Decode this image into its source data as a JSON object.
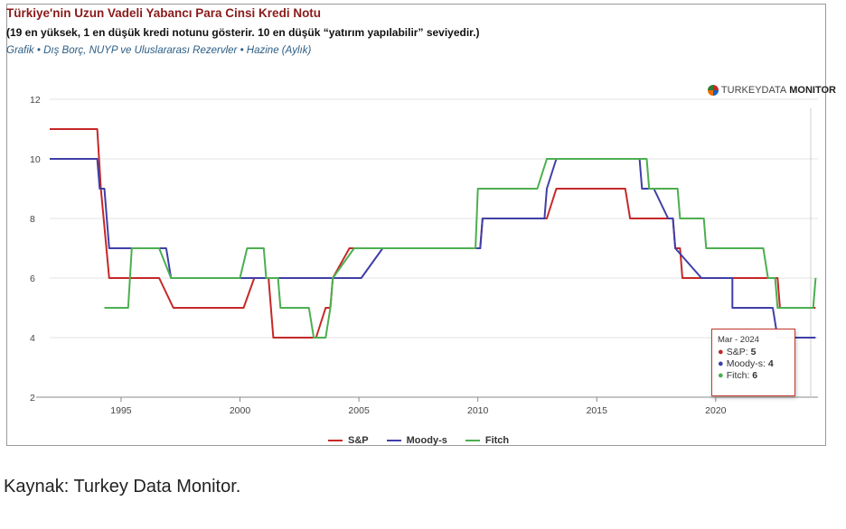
{
  "header": {
    "title": "Türkiye'nin Uzun Vadeli Yabancı Para Cinsi Kredi Notu",
    "subtitle": "(19 en yüksek, 1 en düşük kredi notunu gösterir. 10 en düşük “yatırım yapılabilir” seviyedir.)",
    "source_line": "Grafik • Dış Borç, NUYP ve Uluslararası Rezervler • Hazine (Aylık)"
  },
  "logo": {
    "part1": "TURKEYDATA",
    "part2": "MONITOR"
  },
  "caption": "Kaynak: Turkey Data Monitor.",
  "tooltip": {
    "date": "Mar - 2024",
    "rows": [
      {
        "label": "S&P",
        "value": "5",
        "color": "#c62828"
      },
      {
        "label": "Moody-s",
        "value": "4",
        "color": "#3f3fa8"
      },
      {
        "label": "Fitch",
        "value": "6",
        "color": "#4caf50"
      }
    ]
  },
  "chart_data": {
    "type": "line",
    "xlim": [
      1992.0,
      2024.3
    ],
    "ylim": [
      2,
      12
    ],
    "yticks": [
      2,
      4,
      6,
      8,
      10,
      12
    ],
    "xticks": [
      1995,
      2000,
      2005,
      2010,
      2015,
      2020
    ],
    "grid": "horizontal",
    "legend_position": "bottom",
    "series": [
      {
        "name": "S&P",
        "color": "#c62828",
        "points": [
          [
            1992.0,
            11
          ],
          [
            1994.0,
            11
          ],
          [
            1994.15,
            9
          ],
          [
            1994.5,
            6
          ],
          [
            1996.6,
            6
          ],
          [
            1997.2,
            5
          ],
          [
            2000.0,
            5
          ],
          [
            2000.15,
            5
          ],
          [
            2000.6,
            6
          ],
          [
            2001.2,
            6
          ],
          [
            2001.4,
            4
          ],
          [
            2003.2,
            4
          ],
          [
            2003.6,
            5
          ],
          [
            2003.8,
            5
          ],
          [
            2003.9,
            6
          ],
          [
            2004.6,
            7
          ],
          [
            2010.1,
            7
          ],
          [
            2010.1,
            7
          ],
          [
            2010.2,
            8
          ],
          [
            2012.9,
            8
          ],
          [
            2013.3,
            9
          ],
          [
            2016.2,
            9
          ],
          [
            2016.4,
            8
          ],
          [
            2018.2,
            8
          ],
          [
            2018.3,
            7
          ],
          [
            2018.5,
            7
          ],
          [
            2018.6,
            6
          ],
          [
            2022.6,
            6
          ],
          [
            2022.7,
            5
          ],
          [
            2024.2,
            5
          ]
        ]
      },
      {
        "name": "Moody-s",
        "color": "#3f3fa8",
        "points": [
          [
            1992.0,
            10
          ],
          [
            1994.0,
            10
          ],
          [
            1994.1,
            9
          ],
          [
            1994.3,
            9
          ],
          [
            1994.5,
            7
          ],
          [
            1996.9,
            7
          ],
          [
            1997.1,
            6
          ],
          [
            2005.1,
            6
          ],
          [
            2006.0,
            7
          ],
          [
            2010.1,
            7
          ],
          [
            2010.2,
            8
          ],
          [
            2012.8,
            8
          ],
          [
            2012.9,
            9
          ],
          [
            2013.3,
            10
          ],
          [
            2016.8,
            10
          ],
          [
            2016.9,
            9
          ],
          [
            2017.4,
            9
          ],
          [
            2018.0,
            8
          ],
          [
            2018.2,
            8
          ],
          [
            2018.3,
            7
          ],
          [
            2019.4,
            6
          ],
          [
            2020.7,
            6
          ],
          [
            2020.7,
            5
          ],
          [
            2022.4,
            5
          ],
          [
            2022.6,
            4
          ],
          [
            2024.2,
            4
          ]
        ]
      },
      {
        "name": "Fitch",
        "color": "#4caf50",
        "points": [
          [
            1994.3,
            5
          ],
          [
            1995.3,
            5
          ],
          [
            1995.45,
            7
          ],
          [
            1996.6,
            7
          ],
          [
            1997.1,
            6
          ],
          [
            2000.0,
            6
          ],
          [
            2000.3,
            7
          ],
          [
            2001.0,
            7
          ],
          [
            2001.1,
            6
          ],
          [
            2001.6,
            6
          ],
          [
            2001.7,
            5
          ],
          [
            2002.9,
            5
          ],
          [
            2003.1,
            4
          ],
          [
            2003.6,
            4
          ],
          [
            2003.8,
            5
          ],
          [
            2003.9,
            6
          ],
          [
            2004.8,
            7
          ],
          [
            2009.9,
            7
          ],
          [
            2010.0,
            9
          ],
          [
            2012.4,
            9
          ],
          [
            2012.5,
            9
          ],
          [
            2012.9,
            10
          ],
          [
            2017.1,
            10
          ],
          [
            2017.2,
            9
          ],
          [
            2018.4,
            9
          ],
          [
            2018.5,
            8
          ],
          [
            2019.5,
            8
          ],
          [
            2019.6,
            7
          ],
          [
            2022.0,
            7
          ],
          [
            2022.2,
            6
          ],
          [
            2022.5,
            6
          ],
          [
            2022.6,
            5
          ],
          [
            2024.1,
            5
          ],
          [
            2024.2,
            6
          ]
        ]
      }
    ]
  }
}
